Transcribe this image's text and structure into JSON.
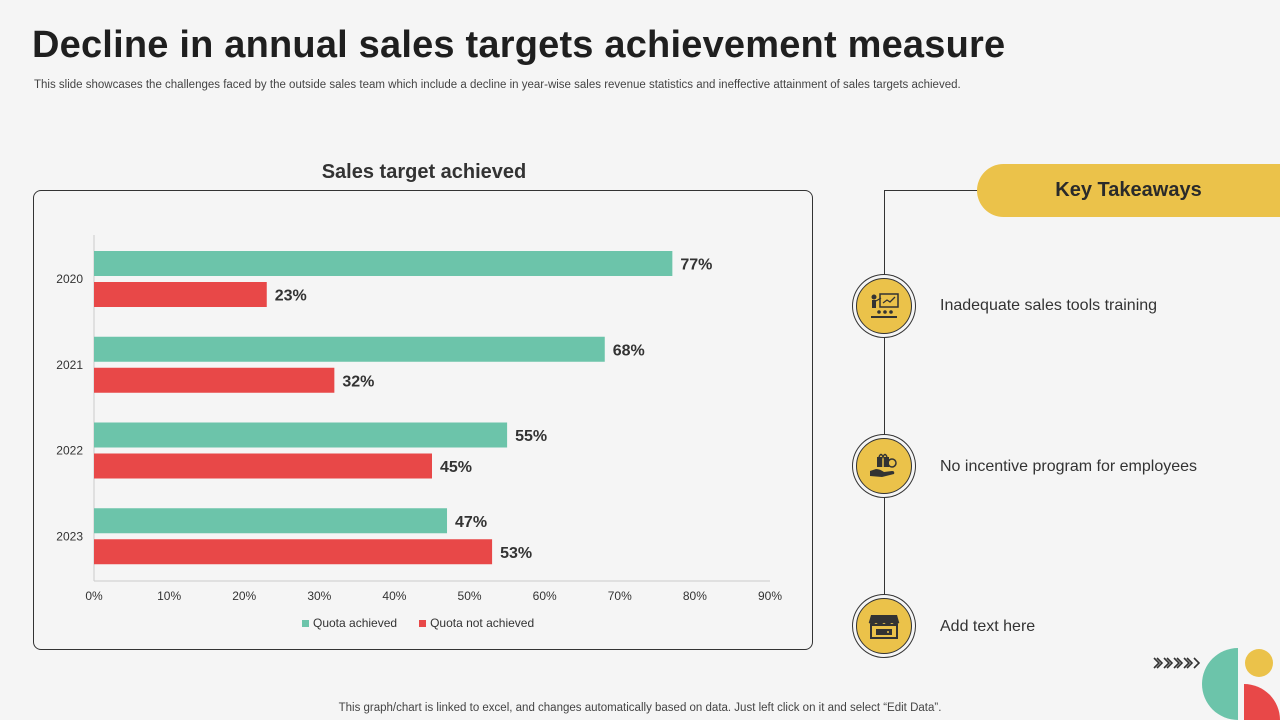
{
  "header": {
    "title": "Decline in annual sales targets achievement measure",
    "subtitle": "This slide showcases the challenges faced by the outside sales team which include a decline in year-wise sales revenue statistics and ineffective attainment of sales targets achieved."
  },
  "chart_data": {
    "type": "bar",
    "orientation": "horizontal",
    "title": "Sales target achieved",
    "categories": [
      "2020",
      "2021",
      "2022",
      "2023"
    ],
    "series": [
      {
        "name": "Quota achieved",
        "color": "#6cc4aa",
        "values": [
          77,
          68,
          55,
          47
        ],
        "labels": [
          "77%",
          "68%",
          "55%",
          "47%"
        ]
      },
      {
        "name": "Quota not achieved",
        "color": "#e84848",
        "values": [
          23,
          32,
          45,
          53
        ],
        "labels": [
          "23%",
          "32%",
          "45%",
          "53%"
        ]
      }
    ],
    "xlim": [
      0,
      90
    ],
    "xticks": [
      "0%",
      "10%",
      "20%",
      "30%",
      "40%",
      "50%",
      "60%",
      "70%",
      "80%",
      "90%"
    ],
    "legend": "bottom",
    "grid": false
  },
  "takeaways": {
    "title": "Key Takeaways",
    "accent_color": "#ebc24a",
    "items": [
      {
        "text": "Inadequate  sales tools training",
        "icon": "presentation-icon"
      },
      {
        "text": "No incentive program for employees",
        "icon": "gift-hand-icon"
      },
      {
        "text": "Add text here",
        "icon": "storefront-icon"
      }
    ]
  },
  "footer": {
    "note": "This graph/chart is linked to excel,  and changes automatically based on data. Just left click on it and select “Edit Data”."
  }
}
